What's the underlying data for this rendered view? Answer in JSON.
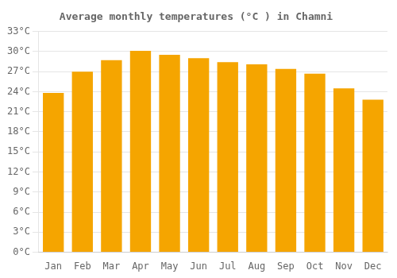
{
  "chart_data": {
    "type": "bar",
    "title": "Average monthly temperatures (°C ) in Chamni",
    "categories": [
      "Jan",
      "Feb",
      "Mar",
      "Apr",
      "May",
      "Jun",
      "Jul",
      "Aug",
      "Sep",
      "Oct",
      "Nov",
      "Dec"
    ],
    "values": [
      23.8,
      27.0,
      28.7,
      30.1,
      29.5,
      29.0,
      28.4,
      28.1,
      27.4,
      26.7,
      24.5,
      22.8
    ],
    "color": "#F5A500",
    "ylim": [
      0,
      33
    ],
    "yticks": [
      {
        "value": 0,
        "label": "0°C"
      },
      {
        "value": 3,
        "label": "3°C"
      },
      {
        "value": 6,
        "label": "6°C"
      },
      {
        "value": 9,
        "label": "9°C"
      },
      {
        "value": 12,
        "label": "12°C"
      },
      {
        "value": 15,
        "label": "15°C"
      },
      {
        "value": 18,
        "label": "18°C"
      },
      {
        "value": 21,
        "label": "21°C"
      },
      {
        "value": 24,
        "label": "24°C"
      },
      {
        "value": 27,
        "label": "27°C"
      },
      {
        "value": 30,
        "label": "30°C"
      },
      {
        "value": 33,
        "label": "33°C"
      }
    ],
    "grid": true
  }
}
